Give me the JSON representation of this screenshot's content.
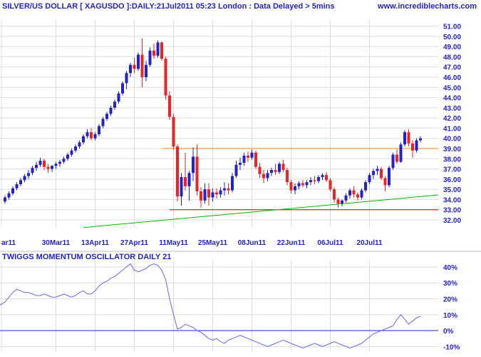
{
  "header": {
    "title": "SILVER/US DOLLAR [ XAGUSDO ]:DAILY:21Jul2011 05:23 London : Data Delayed > 5mins",
    "site": "www.incrediblecharts.com"
  },
  "colors": {
    "text": "#2222cc",
    "grid": "#dcdcdc",
    "up_candle": "#2222cc",
    "down_candle": "#ee2222",
    "resistance_line": "#ff8000",
    "support_line": "#cc0000",
    "trend_line": "#00bb00",
    "oscillator_line": "#6666ee",
    "zero_line": "#2222cc"
  },
  "chart_data": [
    {
      "type": "candlestick",
      "title": "SILVER/US DOLLAR [ XAGUSDO ]:DAILY:21Jul2011 05:23 London : Data Delayed > 5mins",
      "x_tick_labels": [
        "ar11",
        "30Mar11",
        "13Apr11",
        "27Apr11",
        "11May11",
        "25May11",
        "08Jun11",
        "22Jun11",
        "06Jul11",
        "20Jul11"
      ],
      "y_tick_labels": [
        "32.00",
        "33.00",
        "34.00",
        "35.00",
        "36.00",
        "37.00",
        "38.00",
        "39.00",
        "40.00",
        "41.00",
        "42.00",
        "43.00",
        "44.00",
        "45.00",
        "46.00",
        "47.00",
        "48.00",
        "49.00",
        "50.00",
        "51.00"
      ],
      "ylim": [
        31.3,
        51.6
      ],
      "grid": true,
      "series": [
        [
          33.8,
          34.4,
          33.6,
          34.2
        ],
        [
          34.2,
          34.8,
          34.0,
          34.6
        ],
        [
          34.6,
          35.3,
          34.4,
          35.1
        ],
        [
          35.1,
          35.7,
          34.9,
          35.5
        ],
        [
          35.5,
          36.1,
          35.3,
          35.9
        ],
        [
          35.9,
          36.5,
          35.7,
          36.3
        ],
        [
          36.3,
          36.9,
          36.0,
          36.6
        ],
        [
          36.6,
          37.3,
          36.4,
          37.1
        ],
        [
          37.1,
          37.7,
          36.8,
          37.4
        ],
        [
          37.4,
          38.1,
          37.2,
          37.8
        ],
        [
          37.8,
          38.0,
          36.9,
          37.2
        ],
        [
          37.2,
          37.5,
          36.6,
          37.0
        ],
        [
          37.0,
          37.4,
          36.7,
          37.3
        ],
        [
          37.3,
          37.7,
          37.0,
          37.5
        ],
        [
          37.5,
          37.9,
          37.2,
          37.7
        ],
        [
          37.7,
          38.2,
          37.5,
          38.0
        ],
        [
          38.0,
          38.6,
          37.8,
          38.4
        ],
        [
          38.4,
          39.0,
          38.2,
          38.8
        ],
        [
          38.8,
          39.4,
          38.6,
          39.2
        ],
        [
          39.2,
          39.8,
          39.0,
          39.6
        ],
        [
          39.6,
          40.4,
          39.4,
          40.2
        ],
        [
          40.2,
          40.9,
          40.0,
          40.6
        ],
        [
          40.6,
          41.0,
          39.8,
          40.0
        ],
        [
          40.0,
          40.6,
          39.8,
          40.4
        ],
        [
          40.4,
          41.4,
          40.2,
          41.2
        ],
        [
          41.2,
          42.1,
          41.0,
          41.9
        ],
        [
          41.9,
          42.6,
          41.7,
          42.4
        ],
        [
          42.4,
          43.2,
          42.2,
          43.0
        ],
        [
          43.0,
          43.8,
          42.8,
          43.6
        ],
        [
          43.6,
          44.6,
          43.4,
          44.4
        ],
        [
          44.4,
          45.6,
          44.2,
          45.4
        ],
        [
          45.4,
          46.6,
          44.8,
          46.4
        ],
        [
          46.4,
          47.4,
          46.0,
          47.2
        ],
        [
          47.2,
          47.9,
          46.4,
          46.8
        ],
        [
          46.8,
          48.4,
          46.6,
          48.2
        ],
        [
          48.2,
          49.8,
          45.0,
          46.0
        ],
        [
          46.0,
          47.6,
          45.6,
          47.2
        ],
        [
          47.2,
          48.9,
          47.0,
          48.6
        ],
        [
          48.6,
          49.3,
          47.8,
          48.1
        ],
        [
          48.1,
          49.6,
          47.9,
          49.4
        ],
        [
          49.4,
          49.5,
          47.6,
          47.8
        ],
        [
          47.8,
          48.0,
          43.8,
          44.2
        ],
        [
          44.2,
          44.6,
          41.8,
          42.1
        ],
        [
          42.1,
          42.4,
          38.9,
          39.2
        ],
        [
          39.2,
          39.4,
          33.8,
          34.3
        ],
        [
          34.3,
          36.6,
          33.4,
          36.2
        ],
        [
          36.2,
          38.6,
          34.9,
          35.3
        ],
        [
          35.3,
          36.8,
          33.9,
          36.6
        ],
        [
          36.6,
          39.1,
          35.8,
          38.2
        ],
        [
          38.2,
          39.4,
          34.4,
          34.8
        ],
        [
          34.8,
          35.2,
          33.2,
          33.9
        ],
        [
          33.9,
          35.6,
          33.6,
          35.0
        ],
        [
          35.0,
          35.6,
          33.4,
          34.2
        ],
        [
          34.2,
          35.1,
          33.8,
          34.7
        ],
        [
          34.7,
          35.1,
          34.1,
          34.5
        ],
        [
          34.5,
          35.2,
          34.2,
          34.9
        ],
        [
          34.9,
          35.7,
          34.4,
          35.1
        ],
        [
          35.1,
          35.6,
          34.5,
          34.9
        ],
        [
          34.9,
          36.6,
          34.7,
          36.3
        ],
        [
          36.3,
          37.8,
          36.1,
          37.4
        ],
        [
          37.4,
          38.1,
          36.9,
          37.6
        ],
        [
          37.6,
          38.6,
          37.3,
          38.3
        ],
        [
          38.3,
          38.7,
          37.7,
          38.1
        ],
        [
          38.1,
          38.9,
          37.9,
          38.6
        ],
        [
          38.6,
          38.8,
          37.0,
          37.2
        ],
        [
          37.2,
          37.6,
          36.1,
          36.5
        ],
        [
          36.5,
          36.9,
          35.6,
          36.1
        ],
        [
          36.1,
          36.9,
          35.8,
          36.6
        ],
        [
          36.6,
          37.1,
          36.3,
          36.9
        ],
        [
          36.9,
          37.5,
          36.4,
          36.7
        ],
        [
          36.7,
          37.7,
          36.5,
          37.5
        ],
        [
          37.5,
          37.9,
          36.7,
          36.9
        ],
        [
          36.9,
          37.1,
          35.4,
          35.7
        ],
        [
          35.7,
          35.9,
          34.6,
          34.9
        ],
        [
          34.9,
          35.6,
          34.5,
          35.3
        ],
        [
          35.3,
          35.8,
          35.0,
          35.6
        ],
        [
          35.6,
          35.9,
          35.2,
          35.4
        ],
        [
          35.4,
          35.9,
          35.1,
          35.7
        ],
        [
          35.7,
          36.2,
          35.4,
          35.9
        ],
        [
          35.9,
          36.3,
          35.5,
          35.8
        ],
        [
          35.8,
          36.4,
          35.6,
          36.2
        ],
        [
          36.2,
          36.6,
          35.9,
          36.4
        ],
        [
          36.4,
          36.7,
          35.7,
          35.9
        ],
        [
          35.9,
          36.1,
          34.8,
          35.0
        ],
        [
          35.0,
          35.2,
          33.7,
          34.0
        ],
        [
          34.0,
          34.2,
          33.2,
          33.6
        ],
        [
          33.6,
          34.0,
          33.3,
          33.9
        ],
        [
          33.9,
          34.6,
          33.7,
          34.4
        ],
        [
          34.4,
          35.1,
          34.1,
          34.9
        ],
        [
          34.9,
          35.3,
          34.2,
          34.5
        ],
        [
          34.5,
          34.7,
          33.9,
          34.2
        ],
        [
          34.2,
          35.1,
          34.0,
          34.9
        ],
        [
          34.9,
          35.9,
          34.7,
          35.7
        ],
        [
          35.7,
          36.6,
          35.5,
          36.4
        ],
        [
          36.4,
          37.0,
          36.0,
          36.8
        ],
        [
          36.8,
          37.3,
          36.4,
          37.0
        ],
        [
          37.0,
          37.2,
          35.9,
          36.1
        ],
        [
          36.1,
          36.3,
          34.8,
          35.4
        ],
        [
          35.4,
          37.3,
          35.2,
          37.1
        ],
        [
          37.1,
          38.6,
          36.9,
          38.4
        ],
        [
          38.4,
          38.9,
          37.5,
          37.7
        ],
        [
          37.7,
          39.6,
          37.6,
          39.4
        ],
        [
          39.4,
          40.8,
          39.2,
          40.6
        ],
        [
          40.6,
          40.9,
          39.2,
          39.5
        ],
        [
          39.5,
          39.8,
          38.1,
          38.8
        ],
        [
          38.8,
          40.0,
          38.6,
          39.8
        ],
        [
          39.8,
          40.2,
          39.6,
          40.0
        ]
      ],
      "horizontal_lines": [
        39.0,
        33.0
      ],
      "trend_line": {
        "from_bar": 20,
        "from_value": 31.25,
        "to_bar": 106,
        "to_value": 34.45
      }
    },
    {
      "type": "line",
      "title": "TWIGGS MOMENTUM OSCILLATOR DAILY 21",
      "y_tick_labels": [
        "-10%",
        "0%",
        "10%",
        "20%",
        "30%",
        "40%"
      ],
      "ylim": [
        -13,
        44
      ],
      "grid": true,
      "series": [
        {
          "values": [
            16,
            18,
            21,
            24,
            26,
            25,
            24,
            24,
            23,
            22,
            22,
            23,
            22,
            21,
            21,
            22,
            23,
            22,
            21,
            22,
            24,
            25,
            23,
            23,
            25,
            28,
            30,
            31,
            33,
            34,
            36,
            38,
            40,
            42,
            38,
            37,
            38,
            39,
            41,
            42,
            41,
            38,
            32,
            20,
            10,
            1,
            2,
            4,
            3,
            2,
            0,
            -1,
            -3,
            -5,
            -6,
            -5,
            -7,
            -8,
            -6,
            -5,
            -4,
            -3,
            -4,
            -5,
            -6,
            -7,
            -8,
            -9,
            -10,
            -9,
            -8,
            -7,
            -6,
            -7,
            -8,
            -9,
            -10,
            -11,
            -10,
            -9,
            -8,
            -9,
            -10,
            -9,
            -8,
            -7,
            -8,
            -9,
            -10,
            -11,
            -10,
            -9,
            -8,
            -6,
            -4,
            -2,
            -1,
            0,
            1,
            2,
            3,
            7,
            10,
            7,
            4,
            6,
            8,
            9
          ]
        }
      ],
      "zero_line": 0
    }
  ]
}
